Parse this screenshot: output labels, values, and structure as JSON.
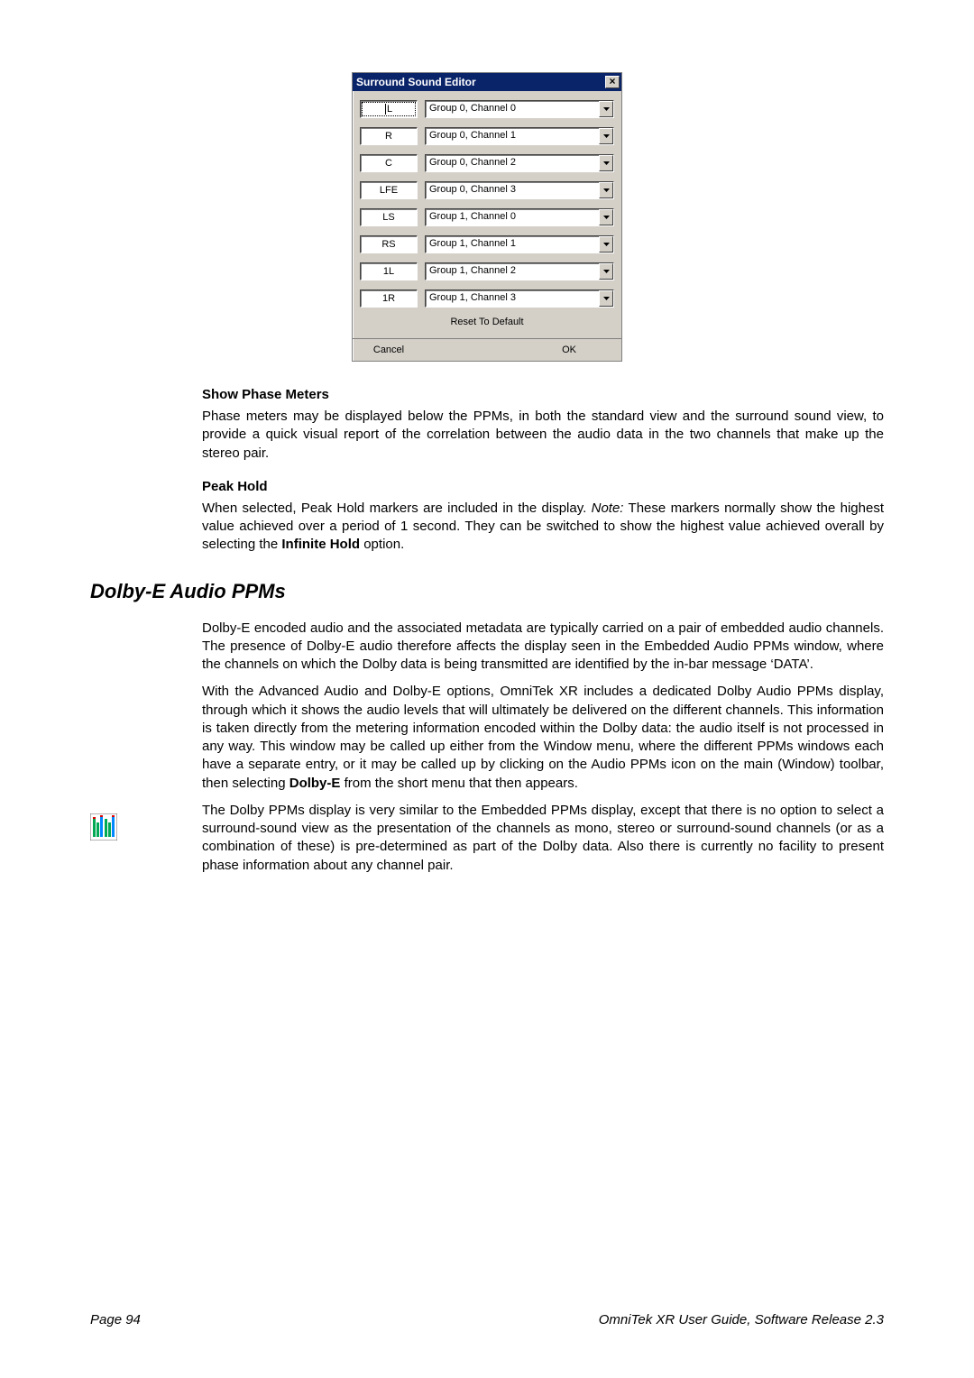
{
  "dialog": {
    "title": "Surround Sound Editor",
    "rows": [
      {
        "label": "L",
        "value": "Group 0, Channel 0",
        "active": true
      },
      {
        "label": "R",
        "value": "Group 0, Channel 1",
        "active": false
      },
      {
        "label": "C",
        "value": "Group 0, Channel 2",
        "active": false
      },
      {
        "label": "LFE",
        "value": "Group 0, Channel 3",
        "active": false
      },
      {
        "label": "LS",
        "value": "Group 1, Channel 0",
        "active": false
      },
      {
        "label": "RS",
        "value": "Group 1, Channel 1",
        "active": false
      },
      {
        "label": "1L",
        "value": "Group 1, Channel 2",
        "active": false
      },
      {
        "label": "1R",
        "value": "Group 1, Channel 3",
        "active": false
      }
    ],
    "reset_label": "Reset To Default",
    "cancel_label": "Cancel",
    "ok_label": "OK"
  },
  "section1": {
    "heading": "Show Phase Meters",
    "body": "Phase meters may be displayed below the PPMs, in both the standard view and the surround sound view, to provide a quick visual report of the correlation between the audio data in the two channels that make up the stereo pair."
  },
  "section2": {
    "heading": "Peak Hold",
    "body_pre": "When selected, Peak Hold markers are included in the display. ",
    "note_label": "Note:",
    "body_mid": " These markers normally show the highest value achieved over a period of 1 second. They can be switched to show the highest value achieved overall by selecting the ",
    "bold": "Infinite Hold",
    "body_post": " option."
  },
  "h2": "Dolby-E Audio PPMs",
  "p1": "Dolby-E encoded audio and the associated metadata are typically carried on a pair of embedded audio channels. The presence of Dolby-E audio therefore affects the display seen in the Embedded Audio PPMs window, where the channels on which the Dolby data is being transmitted are identified by the in-bar message ‘DATA’.",
  "p2_pre": "With the Advanced Audio and Dolby-E options, OmniTek XR includes a dedicated Dolby Audio PPMs display, through which it shows the audio levels that will ultimately be delivered on the different channels. This information is taken directly from the metering information encoded within the Dolby data: the audio itself is not processed in any way. This window may be called up either from the Window menu, where the different PPMs windows each have a separate entry, or it may be called up by clicking on the Audio PPMs icon on the main (Window) toolbar, then selecting ",
  "p2_bold": "Dolby-E",
  "p2_post": " from the short menu that then appears.",
  "p3": "The Dolby PPMs display is very similar to the Embedded PPMs display, except that there is no option to select a surround-sound view as the presentation of the channels as mono, stereo or surround-sound channels (or as a combination of these) is pre-determined as part of the Dolby data. Also there is currently no facility to present phase information about any channel pair.",
  "footer": {
    "left": "Page 94",
    "right": "OmniTek XR User Guide, Software Release 2.3"
  },
  "colors": {
    "titlebar_bg": "#0a246a",
    "dialog_bg": "#d4d0c8",
    "text": "#000000"
  }
}
